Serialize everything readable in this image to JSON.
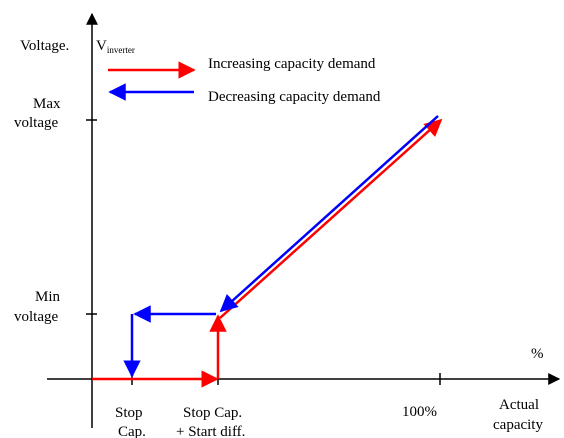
{
  "labels": {
    "y_axis_title": "Voltage.",
    "v_main": "V",
    "v_sub": "inverter",
    "max_voltage_line1": "Max",
    "max_voltage_line2": "voltage",
    "min_voltage_line1": "Min",
    "min_voltage_line2": "voltage",
    "percent": "%",
    "stop_cap_line1": "Stop",
    "stop_cap_line2": "Cap.",
    "stop_cap_start_diff_line1": "Stop Cap.",
    "stop_cap_start_diff_line2": "+ Start diff.",
    "hundred_percent": "100%",
    "actual_capacity_line1": "Actual",
    "actual_capacity_line2": "capacity"
  },
  "legend": {
    "increasing": "Increasing capacity demand",
    "decreasing": "Decreasing capacity demand"
  },
  "colors": {
    "increasing": "#ff0000",
    "decreasing": "#0000ff",
    "axis": "#000000"
  }
}
